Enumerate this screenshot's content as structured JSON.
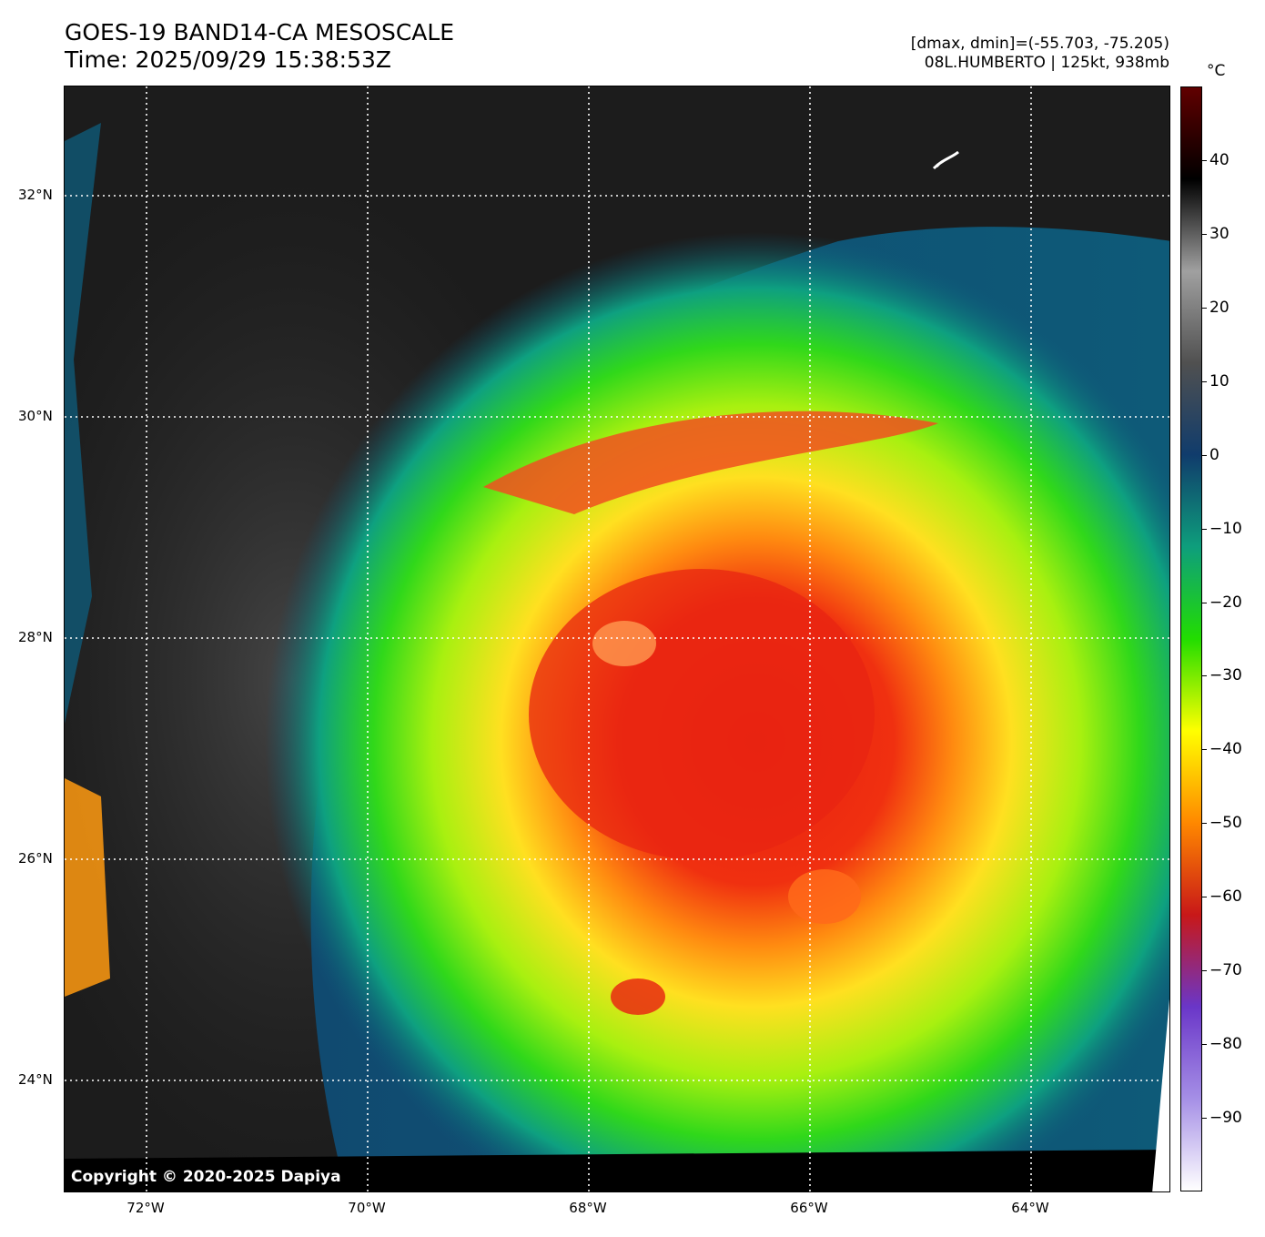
{
  "header": {
    "title": "GOES-19 BAND14-CA MESOSCALE",
    "time": "Time: 2025/09/29 15:38:53Z",
    "range": "[dmax, dmin]=(-55.703, -75.205)",
    "storm": "08L.HUMBERTO | 125kt, 938mb"
  },
  "map": {
    "copyright": "Copyright © 2020-2025 Dapiya",
    "lat_labels": [
      {
        "text": "32°N",
        "lat": 32
      },
      {
        "text": "30°N",
        "lat": 30
      },
      {
        "text": "28°N",
        "lat": 28
      },
      {
        "text": "26°N",
        "lat": 26
      },
      {
        "text": "24°N",
        "lat": 24
      }
    ],
    "lon_labels": [
      {
        "text": "72°W",
        "lon": -72
      },
      {
        "text": "70°W",
        "lon": -70
      },
      {
        "text": "68°W",
        "lon": -68
      },
      {
        "text": "66°W",
        "lon": -66
      },
      {
        "text": "64°W",
        "lon": -64
      }
    ],
    "storm_center": {
      "lat": 28.0,
      "lon": -67.7
    }
  },
  "colorbar": {
    "unit": "°C",
    "ticks": [
      "40",
      "30",
      "20",
      "10",
      "0",
      "−10",
      "−20",
      "−30",
      "−40",
      "−50",
      "−60",
      "−70",
      "−80",
      "−90"
    ],
    "tick_values": [
      40,
      30,
      20,
      10,
      0,
      -10,
      -20,
      -30,
      -40,
      -50,
      -60,
      -70,
      -80,
      -90
    ],
    "range": [
      -100,
      50
    ],
    "colors": [
      "#ffffff",
      "#a58fe6",
      "#6a36c8",
      "#c81818",
      "#ff8800",
      "#ffff00",
      "#22dd00",
      "#0e9e7c",
      "#103c6c",
      "#505050",
      "#a0a0a0",
      "#000000",
      "#600000"
    ]
  }
}
